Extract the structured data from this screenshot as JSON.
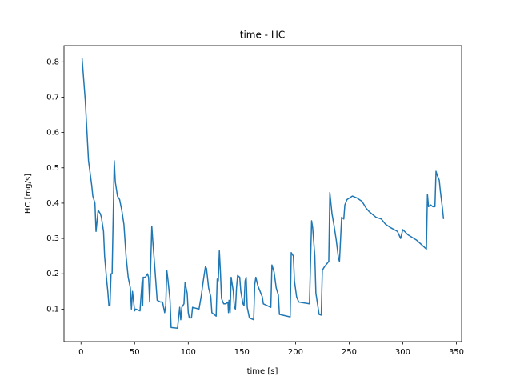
{
  "chart_data": {
    "type": "line",
    "title": "time - HC",
    "x_label": "time [s]",
    "y_label": "HC [mg/s]",
    "color": "#1f77b4",
    "grid": false,
    "xlim": [
      -15.85,
      354.85
    ],
    "ylim": [
      0.008,
      0.846
    ],
    "xticks": [
      0,
      50,
      100,
      150,
      200,
      250,
      300,
      350
    ],
    "yticks": [
      0.1,
      0.2,
      0.3,
      0.4,
      0.5,
      0.6,
      0.7,
      0.8
    ],
    "x": [
      1,
      4,
      7,
      10,
      11,
      13,
      14,
      16,
      18,
      19,
      21,
      22,
      24,
      25,
      26,
      27,
      28,
      29,
      31,
      32,
      34,
      36,
      38,
      40,
      42,
      44,
      46,
      47,
      48,
      50,
      51,
      55,
      57,
      57.5,
      58,
      60,
      62,
      63,
      64,
      66,
      67,
      69,
      71,
      74,
      76,
      78,
      79,
      80,
      81,
      83,
      84,
      90,
      92,
      93,
      94,
      96,
      97,
      99,
      100,
      101,
      103,
      104,
      110,
      112,
      114,
      116,
      117,
      119,
      121,
      122,
      126,
      127,
      128,
      129,
      130,
      131,
      133,
      135,
      137,
      137.5,
      138,
      139,
      140,
      142,
      143,
      144,
      145,
      146,
      148,
      149,
      151,
      152,
      153,
      154,
      155,
      157,
      161,
      162,
      163,
      165,
      167,
      169,
      170,
      177,
      178,
      180,
      182,
      184,
      185,
      195,
      196,
      198,
      199,
      201,
      203,
      213,
      215,
      216,
      218,
      219,
      222,
      224,
      225,
      227,
      231,
      232,
      234,
      236,
      238,
      240,
      241,
      243,
      245,
      246,
      248,
      253,
      257,
      262,
      266,
      269,
      275,
      280,
      284,
      289,
      295,
      298,
      300,
      305,
      313,
      322,
      323,
      324,
      326,
      328,
      330,
      331,
      332,
      334,
      335,
      337,
      338
    ],
    "values": [
      0.81,
      0.69,
      0.52,
      0.45,
      0.42,
      0.4,
      0.32,
      0.38,
      0.37,
      0.36,
      0.32,
      0.25,
      0.18,
      0.15,
      0.11,
      0.11,
      0.2,
      0.2,
      0.52,
      0.46,
      0.42,
      0.41,
      0.38,
      0.34,
      0.25,
      0.19,
      0.16,
      0.1,
      0.15,
      0.095,
      0.1,
      0.095,
      0.18,
      0.11,
      0.19,
      0.19,
      0.2,
      0.19,
      0.12,
      0.335,
      0.29,
      0.21,
      0.125,
      0.12,
      0.12,
      0.09,
      0.11,
      0.21,
      0.185,
      0.125,
      0.048,
      0.046,
      0.105,
      0.07,
      0.105,
      0.115,
      0.175,
      0.145,
      0.09,
      0.075,
      0.075,
      0.105,
      0.1,
      0.135,
      0.18,
      0.22,
      0.215,
      0.16,
      0.135,
      0.09,
      0.08,
      0.185,
      0.18,
      0.265,
      0.205,
      0.13,
      0.115,
      0.115,
      0.12,
      0.09,
      0.125,
      0.09,
      0.19,
      0.15,
      0.105,
      0.1,
      0.16,
      0.195,
      0.19,
      0.15,
      0.115,
      0.11,
      0.18,
      0.19,
      0.105,
      0.075,
      0.07,
      0.17,
      0.19,
      0.165,
      0.15,
      0.135,
      0.115,
      0.105,
      0.225,
      0.205,
      0.16,
      0.14,
      0.085,
      0.078,
      0.26,
      0.25,
      0.18,
      0.135,
      0.12,
      0.115,
      0.35,
      0.33,
      0.25,
      0.145,
      0.085,
      0.083,
      0.21,
      0.22,
      0.235,
      0.43,
      0.37,
      0.335,
      0.295,
      0.245,
      0.235,
      0.36,
      0.355,
      0.395,
      0.41,
      0.42,
      0.415,
      0.405,
      0.385,
      0.375,
      0.36,
      0.355,
      0.34,
      0.33,
      0.32,
      0.3,
      0.325,
      0.31,
      0.295,
      0.27,
      0.425,
      0.39,
      0.395,
      0.39,
      0.39,
      0.49,
      0.48,
      0.465,
      0.435,
      0.385,
      0.355
    ]
  }
}
